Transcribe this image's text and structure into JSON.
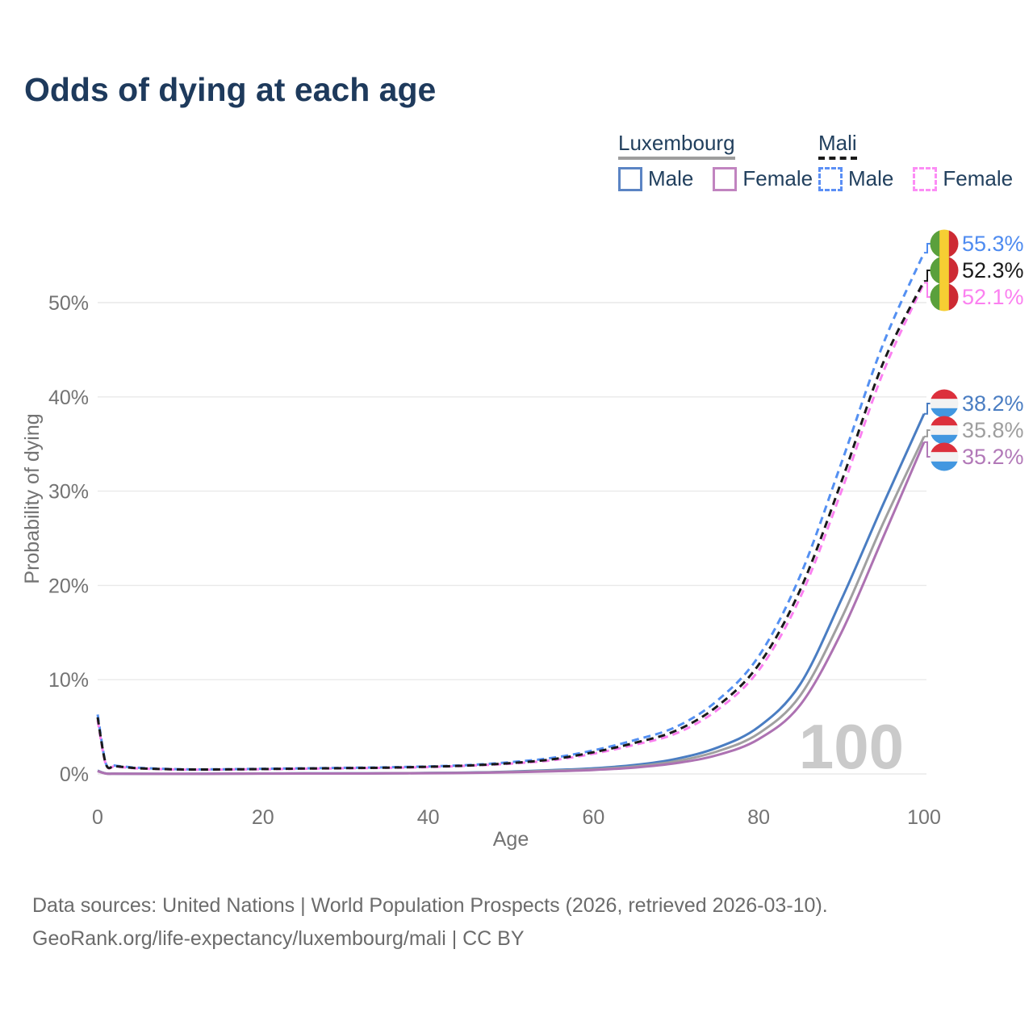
{
  "title": "Odds of dying at each age",
  "legend": {
    "groups": [
      {
        "name": "Luxembourg",
        "line_style": "solid",
        "underline_color": "#9e9e9e",
        "items": [
          {
            "label": "Male",
            "color": "#5b84c4"
          },
          {
            "label": "Female",
            "color": "#c184c0"
          }
        ]
      },
      {
        "name": "Mali",
        "line_style": "dashed",
        "underline_color": "#1a1a1a",
        "items": [
          {
            "label": "Male",
            "color": "#5b8ff5"
          },
          {
            "label": "Female",
            "color": "#fc8df5"
          }
        ]
      }
    ]
  },
  "chart_data": {
    "type": "line",
    "title": "Odds of dying at each age",
    "xlabel": "Age",
    "ylabel": "Probability of dying",
    "xlim": [
      0,
      100
    ],
    "ylim_percent": [
      0,
      57
    ],
    "grid": true,
    "legend_position": "top-right",
    "watermark": "100",
    "x_ticks": [
      {
        "v": 0,
        "label": "0"
      },
      {
        "v": 20,
        "label": "20"
      },
      {
        "v": 40,
        "label": "40"
      },
      {
        "v": 60,
        "label": "60"
      },
      {
        "v": 80,
        "label": "80"
      },
      {
        "v": 100,
        "label": "100"
      }
    ],
    "y_ticks": [
      {
        "v": 0,
        "label": "0%"
      },
      {
        "v": 10,
        "label": "10%"
      },
      {
        "v": 20,
        "label": "20%"
      },
      {
        "v": 30,
        "label": "30%"
      },
      {
        "v": 40,
        "label": "40%"
      },
      {
        "v": 50,
        "label": "50%"
      }
    ],
    "ages": [
      0,
      1,
      2,
      3,
      5,
      10,
      15,
      20,
      25,
      30,
      35,
      40,
      45,
      50,
      55,
      60,
      65,
      70,
      75,
      80,
      85,
      90,
      95,
      100
    ],
    "series": [
      {
        "id": "luxembourg-male",
        "country": "Luxembourg",
        "sex": "Male",
        "color": "#4a7dc2",
        "dashed": false,
        "values_percent": [
          0.35,
          0.05,
          0.03,
          0.02,
          0.02,
          0.01,
          0.03,
          0.05,
          0.06,
          0.06,
          0.08,
          0.1,
          0.15,
          0.25,
          0.4,
          0.6,
          0.95,
          1.6,
          2.8,
          5.0,
          9.5,
          18.5,
          28.5,
          38.2
        ],
        "end_label": {
          "text": "38.2%",
          "color": "#4a7dc2",
          "flag": "luxembourg"
        }
      },
      {
        "id": "luxembourg-both",
        "country": "Luxembourg",
        "sex": "Both",
        "color": "#a0a0a0",
        "dashed": false,
        "values_percent": [
          0.32,
          0.04,
          0.03,
          0.02,
          0.02,
          0.01,
          0.02,
          0.04,
          0.05,
          0.05,
          0.07,
          0.09,
          0.13,
          0.22,
          0.35,
          0.5,
          0.8,
          1.35,
          2.4,
          4.3,
          8.3,
          16.5,
          26.5,
          35.8
        ],
        "end_label": {
          "text": "35.8%",
          "color": "#9e9e9e",
          "flag": "luxembourg"
        }
      },
      {
        "id": "luxembourg-female",
        "country": "Luxembourg",
        "sex": "Female",
        "color": "#ad72b2",
        "dashed": false,
        "values_percent": [
          0.3,
          0.04,
          0.02,
          0.02,
          0.01,
          0.01,
          0.02,
          0.03,
          0.04,
          0.04,
          0.06,
          0.08,
          0.11,
          0.18,
          0.28,
          0.42,
          0.68,
          1.15,
          2.0,
          3.7,
          7.3,
          15.0,
          25.0,
          35.2
        ],
        "end_label": {
          "text": "35.2%",
          "color": "#b279b8",
          "flag": "luxembourg"
        }
      },
      {
        "id": "mali-male",
        "country": "Mali",
        "sex": "Male",
        "color": "#5490f2",
        "dashed": true,
        "values_percent": [
          6.3,
          1.1,
          0.9,
          0.8,
          0.65,
          0.5,
          0.5,
          0.55,
          0.6,
          0.65,
          0.7,
          0.8,
          0.95,
          1.25,
          1.7,
          2.5,
          3.6,
          5.0,
          7.8,
          12.5,
          21.0,
          33.0,
          45.5,
          55.3
        ],
        "end_label": {
          "text": "55.3%",
          "color": "#4e8bf0",
          "flag": "mali"
        }
      },
      {
        "id": "mali-female",
        "country": "Mali",
        "sex": "Female",
        "color": "#fb80f0",
        "dashed": true,
        "values_percent": [
          5.7,
          1.0,
          0.8,
          0.72,
          0.58,
          0.46,
          0.46,
          0.5,
          0.55,
          0.6,
          0.65,
          0.73,
          0.87,
          1.1,
          1.45,
          2.15,
          3.1,
          4.3,
          6.8,
          11.0,
          18.7,
          30.0,
          42.5,
          52.1
        ],
        "end_label": {
          "text": "52.1%",
          "color": "#fb80f0",
          "flag": "mali"
        }
      },
      {
        "id": "mali-both",
        "country": "Mali",
        "sex": "Both",
        "color": "#1a1a1a",
        "dashed": true,
        "values_percent": [
          6.0,
          1.05,
          0.85,
          0.75,
          0.6,
          0.48,
          0.48,
          0.52,
          0.57,
          0.62,
          0.67,
          0.76,
          0.9,
          1.15,
          1.55,
          2.3,
          3.3,
          4.6,
          7.2,
          11.6,
          19.5,
          31.0,
          43.5,
          52.3
        ],
        "end_label": {
          "text": "52.3%",
          "color": "#1a1a1a",
          "flag": "mali"
        }
      }
    ],
    "flag_colors": {
      "mali": [
        "#5aa03c",
        "#f6ce33",
        "#cd2a33"
      ],
      "luxembourg": [
        "#dc303c",
        "#f2f2f2",
        "#4297e0"
      ]
    }
  },
  "footer": {
    "line1": "Data sources: United Nations | World Population Prospects (2026, retrieved 2026-03-10).",
    "line2": "GeoRank.org/life-expectancy/luxembourg/mali | CC BY"
  }
}
